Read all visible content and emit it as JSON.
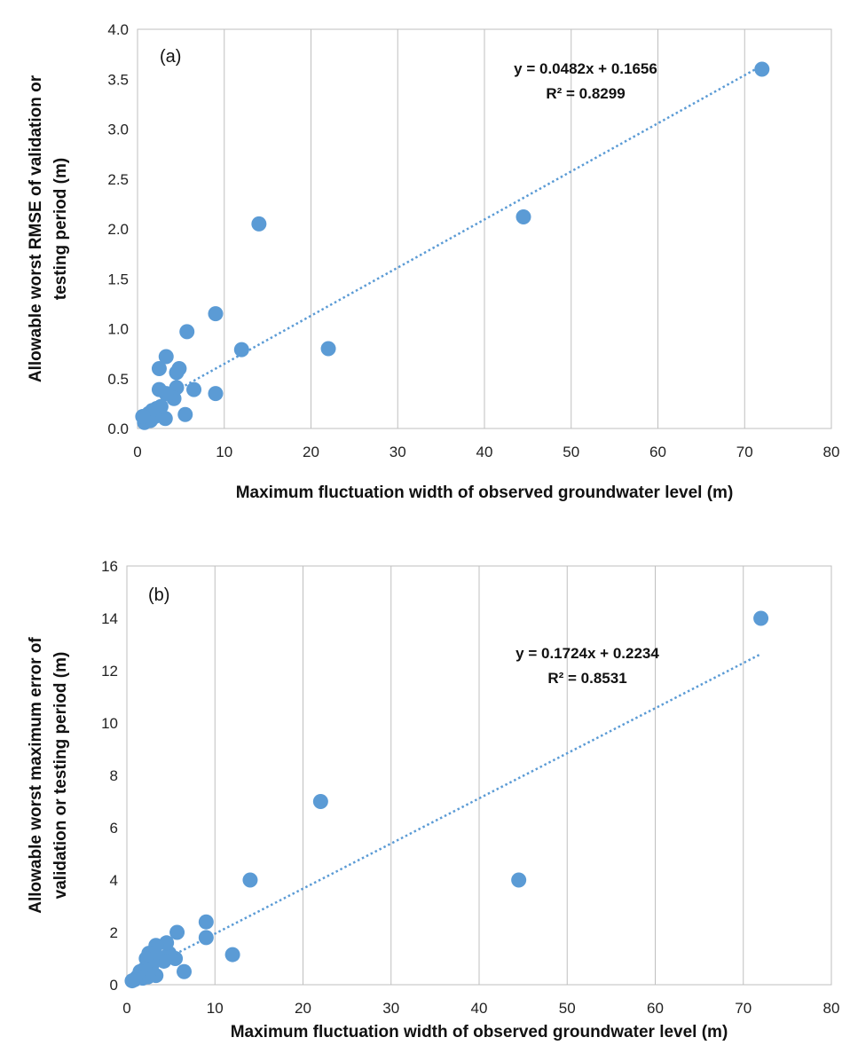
{
  "chart_data": [
    {
      "type": "scatter",
      "panel_label": "(a)",
      "xlabel": "Maximum fluctuation width of observed groundwater level (m)",
      "ylabel_lines": [
        "Allowable worst RMSE of validation or",
        "testing period (m)"
      ],
      "xlim": [
        0,
        80
      ],
      "ylim": [
        0,
        4
      ],
      "xticks": [
        "0",
        "10",
        "20",
        "30",
        "40",
        "50",
        "60",
        "70",
        "80"
      ],
      "yticks": [
        "0.0",
        "0.5",
        "1.0",
        "1.5",
        "2.0",
        "2.5",
        "3.0",
        "3.5",
        "4.0"
      ],
      "grid": "vertical",
      "marker_color": "#5b9bd5",
      "trendline": {
        "slope": 0.0482,
        "intercept": 0.1656,
        "x_range": [
          4.5,
          72
        ],
        "equation": "y = 0.0482x + 0.1656",
        "r2": "R² = 0.8299"
      },
      "points": [
        {
          "x": 72,
          "y": 3.6
        },
        {
          "x": 44.5,
          "y": 2.12
        },
        {
          "x": 14,
          "y": 2.05
        },
        {
          "x": 22,
          "y": 0.8
        },
        {
          "x": 12,
          "y": 0.79
        },
        {
          "x": 9,
          "y": 1.15
        },
        {
          "x": 9,
          "y": 0.35
        },
        {
          "x": 6.5,
          "y": 0.39
        },
        {
          "x": 5.7,
          "y": 0.97
        },
        {
          "x": 5.5,
          "y": 0.14
        },
        {
          "x": 4.8,
          "y": 0.6
        },
        {
          "x": 4.5,
          "y": 0.56
        },
        {
          "x": 4.5,
          "y": 0.41
        },
        {
          "x": 4.2,
          "y": 0.3
        },
        {
          "x": 3.3,
          "y": 0.72
        },
        {
          "x": 3.3,
          "y": 0.35
        },
        {
          "x": 3.2,
          "y": 0.1
        },
        {
          "x": 2.7,
          "y": 0.22
        },
        {
          "x": 2.5,
          "y": 0.6
        },
        {
          "x": 2.5,
          "y": 0.39
        },
        {
          "x": 2.2,
          "y": 0.2
        },
        {
          "x": 2,
          "y": 0.12
        },
        {
          "x": 1.7,
          "y": 0.18
        },
        {
          "x": 1.5,
          "y": 0.08
        },
        {
          "x": 1.3,
          "y": 0.15
        },
        {
          "x": 1,
          "y": 0.1
        },
        {
          "x": 0.8,
          "y": 0.06
        },
        {
          "x": 0.6,
          "y": 0.12
        }
      ]
    },
    {
      "type": "scatter",
      "panel_label": "(b)",
      "xlabel": "Maximum fluctuation width of observed groundwater level (m)",
      "ylabel_lines": [
        "Allowable worst maximum error of",
        "validation or testing period (m)"
      ],
      "xlim": [
        0,
        80
      ],
      "ylim": [
        0,
        16
      ],
      "xticks": [
        "0",
        "10",
        "20",
        "30",
        "40",
        "50",
        "60",
        "70",
        "80"
      ],
      "yticks": [
        "0",
        "2",
        "4",
        "6",
        "8",
        "10",
        "12",
        "14",
        "16"
      ],
      "grid": "vertical",
      "marker_color": "#5b9bd5",
      "trendline": {
        "slope": 0.1724,
        "intercept": 0.2234,
        "x_range": [
          4.5,
          72
        ],
        "equation": "y = 0.1724x + 0.2234",
        "r2": "R² = 0.8531"
      },
      "points": [
        {
          "x": 72,
          "y": 14
        },
        {
          "x": 44.5,
          "y": 4
        },
        {
          "x": 22,
          "y": 7
        },
        {
          "x": 14,
          "y": 4
        },
        {
          "x": 12,
          "y": 1.15
        },
        {
          "x": 9,
          "y": 2.4
        },
        {
          "x": 9,
          "y": 1.8
        },
        {
          "x": 6.5,
          "y": 0.5
        },
        {
          "x": 5.7,
          "y": 2
        },
        {
          "x": 5.5,
          "y": 1
        },
        {
          "x": 4.8,
          "y": 1.2
        },
        {
          "x": 4.5,
          "y": 1.6
        },
        {
          "x": 4.2,
          "y": 0.9
        },
        {
          "x": 3.3,
          "y": 1.5
        },
        {
          "x": 3.3,
          "y": 0.35
        },
        {
          "x": 3.2,
          "y": 1.2
        },
        {
          "x": 2.8,
          "y": 0.7
        },
        {
          "x": 2.5,
          "y": 1.2
        },
        {
          "x": 2.4,
          "y": 0.3
        },
        {
          "x": 2.2,
          "y": 1
        },
        {
          "x": 2,
          "y": 0.6
        },
        {
          "x": 1.8,
          "y": 0.25
        },
        {
          "x": 1.5,
          "y": 0.5
        },
        {
          "x": 1.2,
          "y": 0.3
        },
        {
          "x": 0.9,
          "y": 0.2
        },
        {
          "x": 0.6,
          "y": 0.15
        }
      ]
    }
  ]
}
